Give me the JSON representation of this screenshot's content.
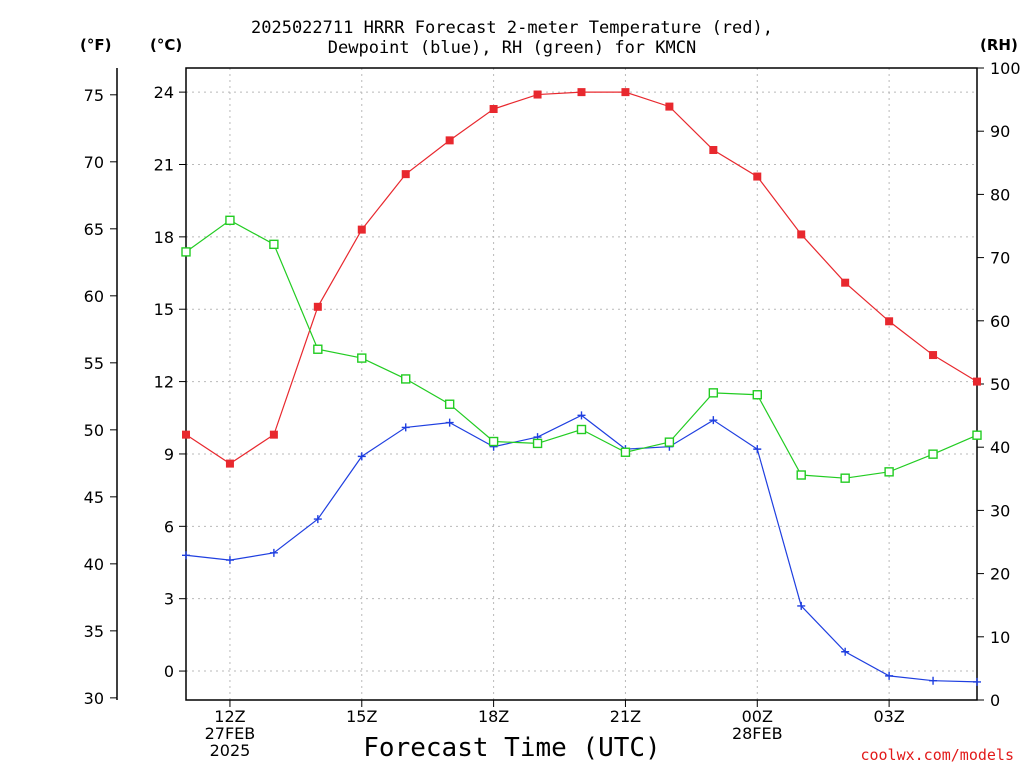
{
  "title": {
    "line1": "2025022711 HRRR Forecast 2-meter Temperature (red),",
    "line2": "Dewpoint (blue), RH (green) for KMCN"
  },
  "units": {
    "fahrenheit": "(°F)",
    "celsius": "(°C)",
    "rh": "(RH)"
  },
  "credit": "coolwx.com/models",
  "chart_data": {
    "type": "line",
    "title": "2025022711 HRRR Forecast 2-meter Temperature (red), Dewpoint (blue), RH (green) for KMCN",
    "xlabel": "Forecast Time (UTC)",
    "x_hours_from_11Z": [
      0,
      1,
      2,
      3,
      4,
      5,
      6,
      7,
      8,
      9,
      10,
      11,
      12,
      13,
      14,
      15,
      16,
      17,
      18
    ],
    "x_ticks": [
      {
        "h": 1,
        "lines": [
          "12Z",
          "27FEB",
          "2025"
        ]
      },
      {
        "h": 4,
        "lines": [
          "15Z"
        ]
      },
      {
        "h": 7,
        "lines": [
          "18Z"
        ]
      },
      {
        "h": 10,
        "lines": [
          "21Z"
        ]
      },
      {
        "h": 13,
        "lines": [
          "00Z",
          "28FEB"
        ]
      },
      {
        "h": 16,
        "lines": [
          "03Z"
        ]
      }
    ],
    "xlim": [
      0,
      18
    ],
    "y_celsius": {
      "ylim": [
        -1.2,
        25
      ],
      "ticks": [
        "0",
        "3",
        "6",
        "9",
        "12",
        "15",
        "18",
        "21",
        "24"
      ]
    },
    "y_fahrenheit": {
      "ticks": [
        "30",
        "35",
        "40",
        "45",
        "50",
        "55",
        "60",
        "65",
        "70",
        "75"
      ]
    },
    "y_rh": {
      "ylim": [
        0,
        100
      ],
      "ticks": [
        "0",
        "10",
        "20",
        "30",
        "40",
        "50",
        "60",
        "70",
        "80",
        "90",
        "100"
      ]
    },
    "grid": true,
    "series": [
      {
        "name": "Temperature",
        "color": "#e8282e",
        "marker": "filled-square",
        "axis": "celsius",
        "values": [
          9.8,
          8.6,
          9.8,
          15.1,
          18.3,
          20.6,
          22.0,
          23.3,
          23.9,
          24.0,
          24.0,
          23.4,
          21.6,
          20.5,
          18.1,
          16.1,
          14.5,
          13.1,
          12.0
        ]
      },
      {
        "name": "Dewpoint",
        "color": "#1f3fe0",
        "marker": "plus",
        "axis": "celsius",
        "values": [
          4.8,
          4.6,
          4.9,
          6.3,
          8.9,
          10.1,
          10.3,
          9.3,
          9.7,
          10.6,
          9.2,
          9.3,
          10.4,
          9.2,
          2.7,
          0.8,
          -0.2,
          -0.4,
          -0.45
        ]
      },
      {
        "name": "RH",
        "color": "#22cc22",
        "marker": "open-square",
        "axis": "rh",
        "values": [
          70.9,
          75.9,
          72.1,
          55.5,
          54.1,
          50.8,
          46.8,
          40.9,
          40.6,
          42.8,
          39.2,
          40.8,
          48.6,
          48.3,
          35.6,
          35.1,
          36.1,
          38.9,
          41.9
        ]
      }
    ]
  }
}
